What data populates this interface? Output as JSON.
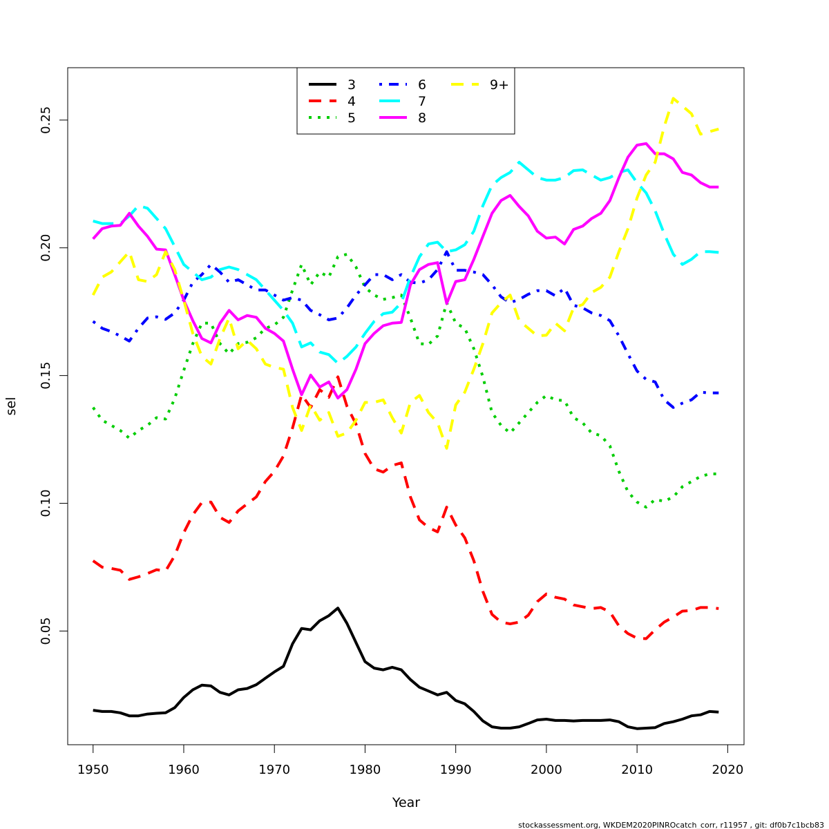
{
  "chart_data": {
    "type": "line",
    "xlabel": "Year",
    "ylabel": "sel",
    "xlim": [
      1947.2,
      2021.8
    ],
    "ylim": [
      0.0055,
      0.2705
    ],
    "x_ticks": [
      1950,
      1960,
      1970,
      1980,
      1990,
      2000,
      2010,
      2020
    ],
    "y_ticks": [
      0.05,
      0.1,
      0.15,
      0.2,
      0.25
    ],
    "x_tick_labels": [
      "1950",
      "1960",
      "1970",
      "1980",
      "1990",
      "2000",
      "2010",
      "2020"
    ],
    "y_tick_labels": [
      "0.05",
      "0.10",
      "0.15",
      "0.20",
      "0.25"
    ],
    "legend_position": "top-center",
    "grid": false,
    "x_start": 1950,
    "x_end": 2019,
    "series": [
      {
        "name": "3",
        "color": "#000000",
        "dash": "solid",
        "values": [
          0.019,
          0.0185,
          0.0185,
          0.018,
          0.0168,
          0.0168,
          0.0175,
          0.0178,
          0.018,
          0.02,
          0.024,
          0.027,
          0.0288,
          0.0285,
          0.026,
          0.025,
          0.027,
          0.0275,
          0.029,
          0.0315,
          0.034,
          0.0362,
          0.045,
          0.051,
          0.0505,
          0.054,
          0.056,
          0.059,
          0.053,
          0.0455,
          0.038,
          0.0355,
          0.0348,
          0.0358,
          0.0348,
          0.031,
          0.028,
          0.0265,
          0.025,
          0.026,
          0.0228,
          0.0215,
          0.0185,
          0.0148,
          0.0125,
          0.012,
          0.012,
          0.0125,
          0.0138,
          0.0152,
          0.0155,
          0.015,
          0.015,
          0.0148,
          0.015,
          0.015,
          0.015,
          0.0152,
          0.0145,
          0.0125,
          0.0118,
          0.012,
          0.0122,
          0.0138,
          0.0145,
          0.0155,
          0.0168,
          0.0172,
          0.0185,
          0.0183
        ]
      },
      {
        "name": "4",
        "color": "#ff0000",
        "dash": "long",
        "values": [
          0.0775,
          0.075,
          0.0745,
          0.0738,
          0.0702,
          0.0712,
          0.0725,
          0.074,
          0.0735,
          0.0795,
          0.0885,
          0.0955,
          0.1003,
          0.1005,
          0.0945,
          0.0925,
          0.097,
          0.0998,
          0.1025,
          0.1085,
          0.1125,
          0.1185,
          0.1295,
          0.1425,
          0.1375,
          0.1445,
          0.1415,
          0.1495,
          0.138,
          0.131,
          0.1195,
          0.1135,
          0.1122,
          0.1148,
          0.1158,
          0.1025,
          0.0935,
          0.0905,
          0.0888,
          0.0985,
          0.0915,
          0.0865,
          0.0775,
          0.0655,
          0.0565,
          0.0535,
          0.0528,
          0.0535,
          0.0562,
          0.0615,
          0.0645,
          0.0632,
          0.0625,
          0.0602,
          0.0595,
          0.0588,
          0.0592,
          0.0575,
          0.052,
          0.049,
          0.0472,
          0.047,
          0.0505,
          0.0535,
          0.0555,
          0.0578,
          0.058,
          0.0592,
          0.0592,
          0.0588
        ]
      },
      {
        "name": "5",
        "color": "#00cd00",
        "dash": "dot",
        "values": [
          0.1375,
          0.1325,
          0.1305,
          0.1285,
          0.1255,
          0.1285,
          0.1305,
          0.1335,
          0.133,
          0.141,
          0.152,
          0.1625,
          0.1705,
          0.1705,
          0.1625,
          0.1585,
          0.1625,
          0.163,
          0.1648,
          0.1685,
          0.1698,
          0.1728,
          0.1835,
          0.1935,
          0.1855,
          0.1905,
          0.1885,
          0.1965,
          0.1975,
          0.1925,
          0.1845,
          0.1815,
          0.1798,
          0.1805,
          0.1815,
          0.1725,
          0.1625,
          0.1622,
          0.1655,
          0.1785,
          0.1705,
          0.1685,
          0.1605,
          0.1495,
          0.1355,
          0.1305,
          0.1275,
          0.1315,
          0.1355,
          0.1395,
          0.1422,
          0.1405,
          0.1402,
          0.1335,
          0.1315,
          0.1275,
          0.1265,
          0.1225,
          0.1125,
          0.1045,
          0.1005,
          0.0985,
          0.1015,
          0.1008,
          0.1025,
          0.1065,
          0.1085,
          0.1105,
          0.1115,
          0.1115
        ]
      },
      {
        "name": "6",
        "color": "#0000ff",
        "dash": "dotdash",
        "values": [
          0.1712,
          0.1685,
          0.1672,
          0.1655,
          0.1635,
          0.1685,
          0.1725,
          0.173,
          0.172,
          0.1745,
          0.1795,
          0.1865,
          0.1895,
          0.1935,
          0.1905,
          0.1865,
          0.1875,
          0.1855,
          0.1835,
          0.1835,
          0.1815,
          0.1795,
          0.1805,
          0.1795,
          0.1755,
          0.1738,
          0.1718,
          0.1725,
          0.1765,
          0.1815,
          0.1855,
          0.1895,
          0.1895,
          0.1875,
          0.1895,
          0.1865,
          0.1862,
          0.1875,
          0.1915,
          0.1985,
          0.1912,
          0.1912,
          0.1905,
          0.1895,
          0.1855,
          0.1808,
          0.1785,
          0.1798,
          0.1818,
          0.1832,
          0.1832,
          0.1812,
          0.1842,
          0.1775,
          0.1765,
          0.1745,
          0.1735,
          0.1715,
          0.1655,
          0.1585,
          0.1518,
          0.1485,
          0.1475,
          0.1405,
          0.1375,
          0.1392,
          0.1405,
          0.1435,
          0.1432,
          0.1432
        ]
      },
      {
        "name": "7",
        "color": "#00ffff",
        "dash": "longlong",
        "values": [
          0.2105,
          0.2095,
          0.2095,
          0.2095,
          0.2125,
          0.2165,
          0.2155,
          0.2115,
          0.2075,
          0.2005,
          0.1935,
          0.1905,
          0.1875,
          0.1885,
          0.1915,
          0.1925,
          0.1915,
          0.1895,
          0.1875,
          0.1835,
          0.1795,
          0.1755,
          0.1705,
          0.1612,
          0.1628,
          0.1592,
          0.1582,
          0.1548,
          0.1575,
          0.1612,
          0.1665,
          0.1712,
          0.1742,
          0.1748,
          0.1785,
          0.1885,
          0.1965,
          0.2015,
          0.2022,
          0.1985,
          0.1992,
          0.2012,
          0.2065,
          0.2165,
          0.2245,
          0.2275,
          0.2295,
          0.2335,
          0.2305,
          0.2275,
          0.2265,
          0.2265,
          0.2275,
          0.2302,
          0.2305,
          0.2285,
          0.2265,
          0.2275,
          0.2295,
          0.2305,
          0.2255,
          0.2215,
          0.2145,
          0.2055,
          0.1975,
          0.1935,
          0.1955,
          0.1985,
          0.1985,
          0.1982
        ]
      },
      {
        "name": "8",
        "color": "#ff00ff",
        "dash": "solid",
        "values": [
          0.2035,
          0.2075,
          0.2085,
          0.2088,
          0.2135,
          0.2085,
          0.2045,
          0.1995,
          0.1992,
          0.1895,
          0.1795,
          0.1715,
          0.1645,
          0.1628,
          0.1705,
          0.1755,
          0.1718,
          0.1735,
          0.1728,
          0.1685,
          0.1665,
          0.1635,
          0.1525,
          0.1425,
          0.1502,
          0.1455,
          0.1475,
          0.1412,
          0.1445,
          0.1525,
          0.1625,
          0.1665,
          0.1695,
          0.1705,
          0.1708,
          0.1855,
          0.1915,
          0.1935,
          0.1942,
          0.1782,
          0.1868,
          0.1875,
          0.1955,
          0.2045,
          0.2135,
          0.2185,
          0.2205,
          0.2162,
          0.2125,
          0.2065,
          0.2038,
          0.2042,
          0.2015,
          0.2072,
          0.2085,
          0.2115,
          0.2135,
          0.2185,
          0.2275,
          0.2355,
          0.2402,
          0.2408,
          0.2368,
          0.2368,
          0.2348,
          0.2295,
          0.2285,
          0.2255,
          0.2238,
          0.2238
        ]
      },
      {
        "name": "9+",
        "color": "#ffff00",
        "dash": "long",
        "values": [
          0.1815,
          0.1885,
          0.1905,
          0.1945,
          0.1985,
          0.1875,
          0.1868,
          0.1895,
          0.1985,
          0.1915,
          0.1795,
          0.1665,
          0.1575,
          0.1545,
          0.1645,
          0.1725,
          0.1605,
          0.1638,
          0.1605,
          0.1545,
          0.1532,
          0.1525,
          0.1375,
          0.1285,
          0.1385,
          0.1325,
          0.1355,
          0.1262,
          0.1275,
          0.1325,
          0.1395,
          0.1395,
          0.1405,
          0.1335,
          0.1275,
          0.1395,
          0.1422,
          0.1355,
          0.1315,
          0.1215,
          0.1385,
          0.1435,
          0.1525,
          0.1625,
          0.1745,
          0.1785,
          0.1815,
          0.1715,
          0.1685,
          0.1655,
          0.1658,
          0.1705,
          0.1675,
          0.1765,
          0.1778,
          0.1825,
          0.1845,
          0.1885,
          0.1985,
          0.2075,
          0.2195,
          0.2285,
          0.2335,
          0.2475,
          0.2585,
          0.2555,
          0.2525,
          0.2445,
          0.2455,
          0.2465
        ]
      }
    ]
  },
  "footer": {
    "text": "stockassessment.org, WKDEM2020PINROcatch_corr, r11957 , git: df0b7c1bcb83"
  }
}
